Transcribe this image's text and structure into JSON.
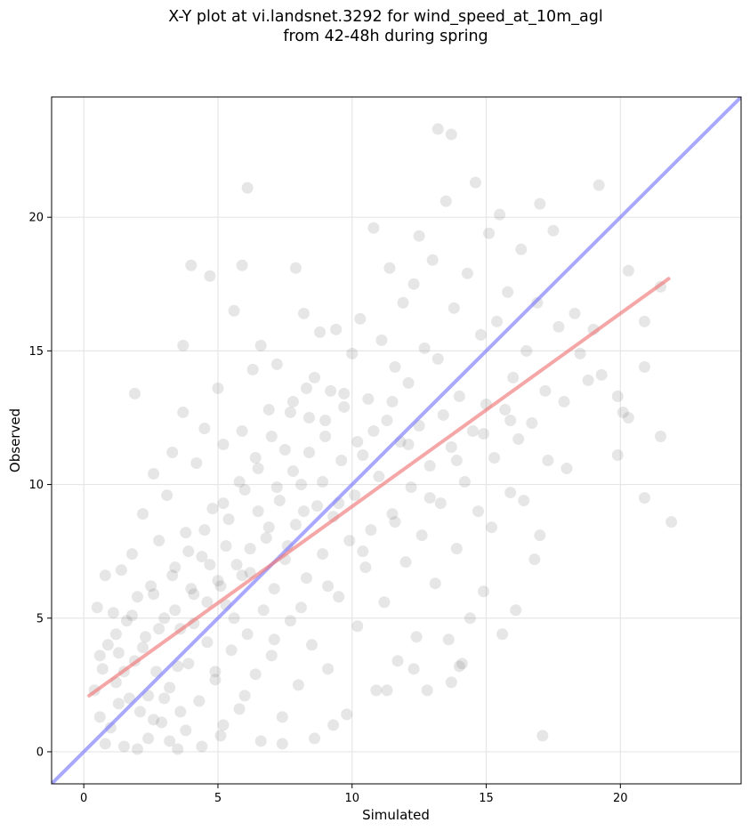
{
  "title": {
    "line1": "X-Y plot at vi.landsnet.3292 for wind_speed_at_10m_agl",
    "line2": "from 42-48h during spring"
  },
  "chart_data": {
    "type": "scatter",
    "title": "X-Y plot at vi.landsnet.3292 for wind_speed_at_10m_agl from 42-48h during spring",
    "xlabel": "Simulated",
    "ylabel": "Observed",
    "xlim": [
      -1.2,
      24.5
    ],
    "ylim": [
      -1.2,
      24.5
    ],
    "xticks": [
      0,
      5,
      10,
      15,
      20
    ],
    "yticks": [
      0,
      5,
      10,
      15,
      20
    ],
    "grid": true,
    "colors": {
      "points": "#3a3a3a",
      "identity_line": "#7a7aff",
      "fit_line": "#f07878",
      "grid": "#e6e6e6"
    },
    "series": [
      {
        "type": "scatter",
        "points": [
          [
            0.4,
            2.3
          ],
          [
            0.5,
            5.4
          ],
          [
            0.6,
            1.3
          ],
          [
            0.7,
            3.1
          ],
          [
            0.8,
            6.6
          ],
          [
            0.9,
            4.0
          ],
          [
            1.0,
            0.9
          ],
          [
            1.1,
            5.2
          ],
          [
            1.2,
            2.6
          ],
          [
            1.3,
            3.7
          ],
          [
            1.4,
            6.8
          ],
          [
            1.5,
            0.2
          ],
          [
            1.6,
            4.9
          ],
          [
            1.7,
            2.0
          ],
          [
            1.8,
            7.4
          ],
          [
            1.9,
            3.4
          ],
          [
            1.9,
            13.4
          ],
          [
            2.0,
            5.8
          ],
          [
            2.1,
            1.5
          ],
          [
            2.2,
            8.9
          ],
          [
            2.3,
            4.3
          ],
          [
            2.4,
            0.5
          ],
          [
            2.5,
            6.2
          ],
          [
            2.6,
            10.4
          ],
          [
            2.7,
            3.0
          ],
          [
            2.8,
            7.9
          ],
          [
            2.9,
            1.1
          ],
          [
            3.0,
            5.0
          ],
          [
            3.1,
            9.6
          ],
          [
            3.2,
            2.4
          ],
          [
            3.3,
            11.2
          ],
          [
            3.4,
            6.9
          ],
          [
            3.5,
            0.1
          ],
          [
            3.6,
            4.6
          ],
          [
            3.7,
            12.7
          ],
          [
            3.7,
            15.2
          ],
          [
            3.8,
            8.2
          ],
          [
            3.9,
            3.3
          ],
          [
            4.0,
            18.2
          ],
          [
            4.1,
            5.9
          ],
          [
            4.2,
            10.8
          ],
          [
            4.3,
            1.9
          ],
          [
            4.4,
            7.3
          ],
          [
            4.5,
            12.1
          ],
          [
            4.6,
            4.1
          ],
          [
            4.7,
            17.8
          ],
          [
            4.8,
            9.1
          ],
          [
            4.9,
            2.7
          ],
          [
            5.0,
            6.4
          ],
          [
            5.0,
            13.6
          ],
          [
            5.1,
            0.6
          ],
          [
            5.2,
            11.5
          ],
          [
            5.3,
            5.5
          ],
          [
            5.4,
            8.7
          ],
          [
            5.5,
            3.8
          ],
          [
            5.6,
            16.5
          ],
          [
            5.7,
            7.0
          ],
          [
            5.8,
            1.6
          ],
          [
            5.9,
            12.0
          ],
          [
            5.9,
            18.2
          ],
          [
            6.0,
            9.8
          ],
          [
            6.1,
            4.4
          ],
          [
            6.1,
            21.1
          ],
          [
            6.2,
            6.7
          ],
          [
            6.3,
            14.3
          ],
          [
            6.4,
            2.9
          ],
          [
            6.5,
            10.6
          ],
          [
            6.6,
            15.2
          ],
          [
            6.7,
            5.3
          ],
          [
            6.8,
            8.0
          ],
          [
            6.9,
            12.8
          ],
          [
            7.0,
            3.6
          ],
          [
            7.1,
            6.1
          ],
          [
            7.2,
            14.5
          ],
          [
            7.3,
            9.4
          ],
          [
            7.4,
            1.3
          ],
          [
            7.5,
            11.3
          ],
          [
            7.6,
            7.7
          ],
          [
            7.7,
            4.9
          ],
          [
            7.8,
            13.1
          ],
          [
            7.9,
            8.5
          ],
          [
            7.9,
            18.1
          ],
          [
            8.0,
            2.5
          ],
          [
            8.1,
            10.0
          ],
          [
            8.2,
            16.4
          ],
          [
            8.3,
            6.5
          ],
          [
            8.4,
            12.5
          ],
          [
            8.5,
            4.0
          ],
          [
            8.6,
            14.0
          ],
          [
            8.7,
            9.2
          ],
          [
            8.8,
            15.7
          ],
          [
            8.9,
            7.4
          ],
          [
            9.0,
            11.8
          ],
          [
            9.1,
            3.1
          ],
          [
            9.2,
            13.5
          ],
          [
            9.3,
            8.8
          ],
          [
            9.4,
            15.8
          ],
          [
            9.5,
            5.8
          ],
          [
            9.6,
            10.9
          ],
          [
            9.7,
            12.9
          ],
          [
            9.8,
            1.4
          ],
          [
            9.9,
            7.9
          ],
          [
            10.0,
            14.9
          ],
          [
            10.1,
            9.6
          ],
          [
            10.2,
            4.7
          ],
          [
            10.3,
            16.2
          ],
          [
            10.4,
            11.1
          ],
          [
            10.5,
            6.9
          ],
          [
            10.6,
            13.2
          ],
          [
            10.7,
            8.3
          ],
          [
            10.8,
            19.6
          ],
          [
            10.9,
            2.3
          ],
          [
            11.0,
            10.3
          ],
          [
            11.1,
            15.4
          ],
          [
            11.2,
            5.6
          ],
          [
            11.3,
            12.4
          ],
          [
            11.4,
            18.1
          ],
          [
            11.5,
            8.9
          ],
          [
            11.6,
            14.4
          ],
          [
            11.7,
            3.4
          ],
          [
            11.8,
            11.6
          ],
          [
            11.9,
            16.8
          ],
          [
            12.0,
            7.1
          ],
          [
            12.1,
            13.8
          ],
          [
            12.2,
            9.9
          ],
          [
            12.3,
            17.5
          ],
          [
            12.4,
            4.3
          ],
          [
            12.5,
            12.2
          ],
          [
            12.5,
            19.3
          ],
          [
            12.6,
            8.1
          ],
          [
            12.7,
            15.1
          ],
          [
            12.8,
            2.3
          ],
          [
            12.9,
            10.7
          ],
          [
            13.0,
            18.4
          ],
          [
            13.1,
            6.3
          ],
          [
            13.2,
            14.7
          ],
          [
            13.2,
            23.3
          ],
          [
            13.3,
            9.3
          ],
          [
            13.4,
            12.6
          ],
          [
            13.5,
            20.6
          ],
          [
            13.6,
            4.2
          ],
          [
            13.7,
            11.4
          ],
          [
            13.7,
            23.1
          ],
          [
            13.8,
            16.6
          ],
          [
            13.9,
            7.6
          ],
          [
            14.0,
            13.3
          ],
          [
            14.1,
            3.3
          ],
          [
            14.2,
            10.1
          ],
          [
            14.3,
            17.9
          ],
          [
            14.4,
            5.0
          ],
          [
            14.5,
            12.0
          ],
          [
            14.6,
            21.3
          ],
          [
            14.7,
            9.0
          ],
          [
            14.8,
            15.6
          ],
          [
            14.9,
            6.0
          ],
          [
            15.0,
            13.0
          ],
          [
            15.1,
            19.4
          ],
          [
            15.2,
            8.4
          ],
          [
            15.3,
            11.0
          ],
          [
            15.4,
            16.1
          ],
          [
            15.5,
            20.1
          ],
          [
            15.6,
            4.4
          ],
          [
            15.7,
            12.8
          ],
          [
            15.8,
            17.2
          ],
          [
            15.9,
            9.7
          ],
          [
            16.0,
            14.0
          ],
          [
            16.1,
            5.3
          ],
          [
            16.2,
            11.7
          ],
          [
            16.3,
            18.8
          ],
          [
            16.4,
            9.4
          ],
          [
            16.5,
            15.0
          ],
          [
            16.7,
            12.3
          ],
          [
            16.8,
            7.2
          ],
          [
            16.9,
            16.8
          ],
          [
            17.0,
            20.5
          ],
          [
            17.0,
            8.1
          ],
          [
            17.1,
            0.6
          ],
          [
            17.2,
            13.5
          ],
          [
            17.3,
            10.9
          ],
          [
            17.5,
            19.5
          ],
          [
            17.7,
            15.9
          ],
          [
            17.9,
            13.1
          ],
          [
            18.0,
            10.6
          ],
          [
            18.3,
            16.4
          ],
          [
            18.5,
            14.9
          ],
          [
            18.8,
            13.9
          ],
          [
            19.0,
            15.8
          ],
          [
            19.2,
            21.2
          ],
          [
            19.3,
            14.1
          ],
          [
            19.9,
            13.3
          ],
          [
            19.9,
            11.1
          ],
          [
            20.1,
            12.7
          ],
          [
            20.3,
            18.0
          ],
          [
            20.3,
            12.5
          ],
          [
            20.9,
            16.1
          ],
          [
            20.9,
            14.4
          ],
          [
            20.9,
            9.5
          ],
          [
            21.5,
            17.4
          ],
          [
            21.5,
            11.8
          ],
          [
            21.9,
            8.6
          ],
          [
            0.8,
            0.3
          ],
          [
            1.3,
            1.8
          ],
          [
            2.0,
            0.1
          ],
          [
            2.6,
            1.2
          ],
          [
            3.2,
            0.4
          ],
          [
            3.8,
            0.8
          ],
          [
            4.4,
            0.2
          ],
          [
            5.2,
            1.0
          ],
          [
            6.6,
            0.4
          ],
          [
            7.4,
            0.3
          ],
          [
            8.6,
            0.5
          ],
          [
            9.3,
            1.0
          ],
          [
            11.3,
            2.3
          ],
          [
            12.3,
            3.1
          ],
          [
            13.7,
            2.6
          ],
          [
            14.0,
            3.2
          ],
          [
            3.0,
            2.0
          ],
          [
            3.5,
            3.2
          ],
          [
            4.1,
            4.8
          ],
          [
            4.6,
            5.6
          ],
          [
            5.1,
            6.2
          ],
          [
            5.6,
            5.0
          ],
          [
            6.2,
            7.6
          ],
          [
            6.9,
            8.4
          ],
          [
            7.5,
            7.2
          ],
          [
            8.2,
            9.0
          ],
          [
            8.9,
            10.1
          ],
          [
            9.5,
            9.3
          ],
          [
            10.2,
            11.6
          ],
          [
            10.8,
            12.0
          ],
          [
            11.5,
            13.1
          ],
          [
            12.1,
            11.5
          ],
          [
            2.2,
            3.9
          ],
          [
            2.8,
            4.6
          ],
          [
            3.4,
            5.3
          ],
          [
            4.0,
            6.1
          ],
          [
            4.7,
            7.0
          ],
          [
            5.3,
            7.7
          ],
          [
            5.9,
            6.6
          ],
          [
            6.5,
            9.0
          ],
          [
            7.2,
            9.9
          ],
          [
            7.8,
            10.5
          ],
          [
            8.4,
            11.2
          ],
          [
            9.0,
            12.4
          ],
          [
            9.7,
            13.4
          ],
          [
            1.5,
            3.0
          ],
          [
            2.4,
            2.1
          ],
          [
            3.6,
            1.5
          ],
          [
            4.9,
            3.0
          ],
          [
            6.0,
            2.1
          ],
          [
            7.1,
            4.2
          ],
          [
            8.1,
            5.4
          ],
          [
            9.1,
            6.2
          ],
          [
            10.4,
            7.5
          ],
          [
            11.6,
            8.6
          ],
          [
            12.9,
            9.5
          ],
          [
            13.9,
            10.9
          ],
          [
            14.9,
            11.9
          ],
          [
            15.9,
            12.4
          ],
          [
            0.6,
            3.6
          ],
          [
            1.2,
            4.4
          ],
          [
            1.8,
            5.1
          ],
          [
            2.6,
            5.9
          ],
          [
            3.3,
            6.6
          ],
          [
            3.9,
            7.5
          ],
          [
            4.5,
            8.3
          ],
          [
            5.2,
            9.3
          ],
          [
            5.8,
            10.1
          ],
          [
            6.4,
            11.0
          ],
          [
            7.0,
            11.8
          ],
          [
            7.7,
            12.7
          ],
          [
            8.3,
            13.6
          ]
        ]
      },
      {
        "type": "line",
        "role": "identity",
        "x": [
          -1.2,
          24.5
        ],
        "y": [
          -1.2,
          24.5
        ]
      },
      {
        "type": "line",
        "role": "linear_fit",
        "x": [
          0.2,
          21.8
        ],
        "y": [
          2.1,
          17.7
        ]
      }
    ]
  }
}
